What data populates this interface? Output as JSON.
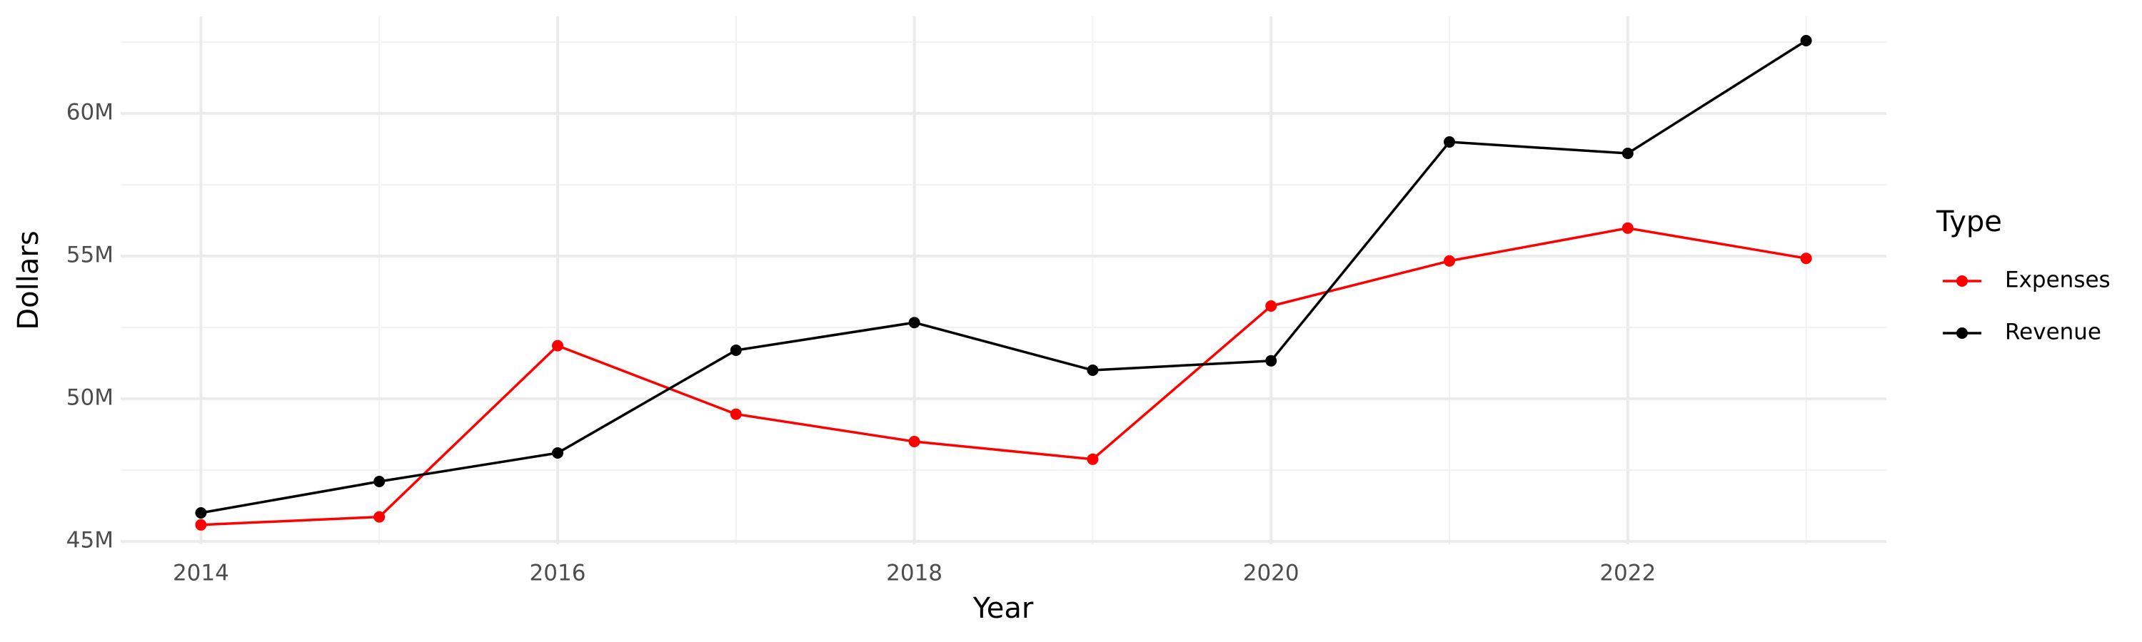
{
  "chart_data": {
    "type": "line",
    "x_label": "Year",
    "y_label": "Dollars",
    "legend_title": "Type",
    "x": [
      2014,
      2015,
      2016,
      2017,
      2018,
      2019,
      2020,
      2021,
      2022,
      2023
    ],
    "series": [
      {
        "name": "Expenses",
        "color": "#ff0000",
        "values": [
          45580000,
          45860000,
          51860000,
          49460000,
          48500000,
          47880000,
          53250000,
          54830000,
          55980000,
          54920000
        ]
      },
      {
        "name": "Revenue",
        "color": "#000000",
        "values": [
          46000000,
          47100000,
          48100000,
          51700000,
          52670000,
          51000000,
          51330000,
          59000000,
          58600000,
          62550000
        ]
      }
    ],
    "xlim": [
      2013.55,
      2023.45
    ],
    "xticks": [
      2014,
      2016,
      2018,
      2020,
      2022
    ],
    "ylim": [
      44900000,
      63400000
    ],
    "yticks": [
      {
        "value": 45000000,
        "label": "45M"
      },
      {
        "value": 50000000,
        "label": "50M"
      },
      {
        "value": 55000000,
        "label": "55M"
      },
      {
        "value": 60000000,
        "label": "60M"
      }
    ],
    "grid": true,
    "legend": "right"
  }
}
